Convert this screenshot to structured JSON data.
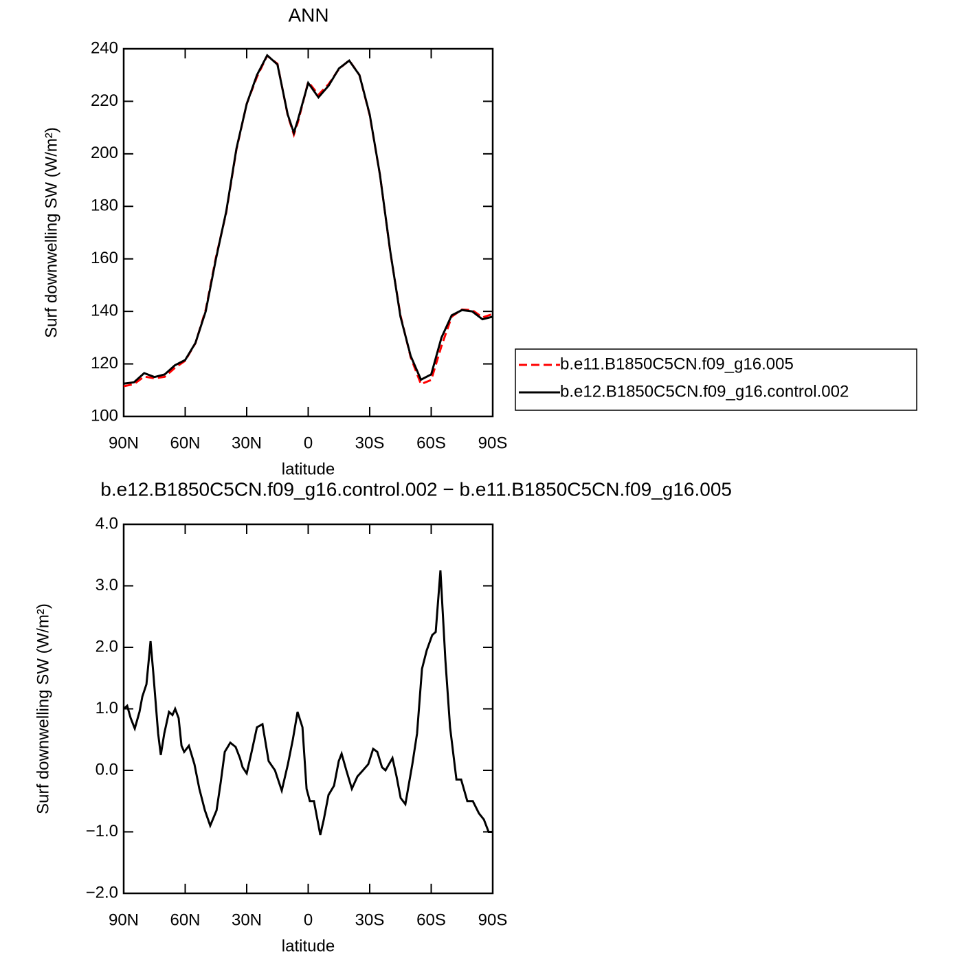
{
  "chart_data": [
    {
      "type": "line",
      "title": "ANN",
      "xlabel": "latitude",
      "ylabel": "Surf downwelling SW (W/m²)",
      "x": [
        90,
        85,
        80,
        75,
        70,
        65,
        60,
        55,
        50,
        45,
        40,
        35,
        30,
        25,
        20,
        15,
        10,
        7,
        5,
        0,
        -5,
        -10,
        -15,
        -20,
        -25,
        -30,
        -35,
        -40,
        -45,
        -50,
        -55,
        -60,
        -65,
        -70,
        -75,
        -80,
        -85,
        -90
      ],
      "xlim": [
        90,
        -90
      ],
      "xticks": [
        {
          "value": 90,
          "label": "90N"
        },
        {
          "value": 60,
          "label": "60N"
        },
        {
          "value": 30,
          "label": "30N"
        },
        0,
        {
          "value": -30,
          "label": "30S"
        },
        {
          "value": -60,
          "label": "60S"
        },
        {
          "value": -90,
          "label": "90S"
        }
      ],
      "ylim": [
        100,
        240
      ],
      "yticks": [
        100,
        120,
        140,
        160,
        180,
        200,
        220,
        240
      ],
      "legend": "right",
      "series": [
        {
          "name": "b.e11.B1850C5CN.f09_g16.005",
          "color": "#ff0000",
          "line_style": "dashed",
          "values": [
            111.5,
            112.3,
            115.2,
            114.5,
            115.1,
            118.5,
            121.2,
            127.9,
            140.6,
            160.6,
            177.6,
            201.7,
            219.0,
            229.3,
            237.4,
            234.3,
            214.7,
            207.3,
            212.1,
            227.4,
            222.5,
            226.6,
            232.3,
            235.6,
            230.0,
            214.7,
            192.0,
            162.8,
            138.5,
            122.5,
            112.3,
            113.9,
            126.8,
            138.0,
            140.7,
            140.5,
            137.7,
            139.0
          ]
        },
        {
          "name": "b.e12.B1850C5CN.f09_g16.control.002",
          "color": "#000000",
          "line_style": "solid",
          "values": [
            112.5,
            113,
            116.5,
            115,
            116,
            119.5,
            121.5,
            128,
            140,
            160,
            178,
            202,
            219,
            230,
            237.5,
            234,
            215,
            208,
            213,
            227,
            221.5,
            226,
            232.5,
            235.5,
            230,
            215,
            192,
            163,
            138,
            123,
            114,
            116,
            130,
            138.5,
            140.5,
            140,
            137,
            138
          ]
        }
      ]
    },
    {
      "type": "line",
      "title": "b.e12.B1850C5CN.f09_g16.control.002 − b.e11.B1850C5CN.f09_g16.005",
      "xlabel": "latitude",
      "ylabel": "Surf downwelling SW (W/m²)",
      "x": [
        90,
        88.3,
        86.6,
        84.6,
        82.3,
        80.9,
        78.9,
        76.9,
        75.6,
        73.2,
        71.9,
        70.2,
        67.9,
        66.2,
        64.9,
        63.2,
        61.8,
        60.5,
        58.2,
        55.5,
        53.1,
        50.4,
        47.8,
        44.7,
        42.7,
        40.7,
        38.0,
        35.4,
        33.3,
        32.0,
        30.0,
        27.6,
        25.0,
        22.3,
        19.3,
        16.2,
        12.9,
        9.9,
        7.5,
        5.2,
        2.8,
        0.8,
        -0.8,
        -2.8,
        -5.9,
        -7.6,
        -9.9,
        -12.6,
        -14.9,
        -16.3,
        -18.6,
        -21.3,
        -24.0,
        -26.7,
        -29.3,
        -31.7,
        -33.7,
        -36.0,
        -37.7,
        -41.1,
        -43.1,
        -45.1,
        -47.4,
        -50.8,
        -53.1,
        -55.5,
        -57.8,
        -60.5,
        -62.2,
        -64.5,
        -66.9,
        -69.2,
        -72.3,
        -74.6,
        -77.6,
        -80.3,
        -83.3,
        -85.7,
        -88.0,
        -90
      ],
      "xlim": [
        90,
        -90
      ],
      "xticks": [
        {
          "value": 90,
          "label": "90N"
        },
        {
          "value": 60,
          "label": "60N"
        },
        {
          "value": 30,
          "label": "30N"
        },
        0,
        {
          "value": -30,
          "label": "30S"
        },
        {
          "value": -60,
          "label": "60S"
        },
        {
          "value": -90,
          "label": "90S"
        }
      ],
      "ylim": [
        -2,
        4
      ],
      "yticks": [
        {
          "value": -2,
          "label": "−2.0"
        },
        {
          "value": -1,
          "label": "−1.0"
        },
        {
          "value": 0,
          "label": "0.0"
        },
        {
          "value": 1,
          "label": "1.0"
        },
        {
          "value": 2,
          "label": "2.0"
        },
        {
          "value": 3,
          "label": "3.0"
        },
        {
          "value": 4,
          "label": "4.0"
        }
      ],
      "series": [
        {
          "color": "#000000",
          "line_style": "solid",
          "values": [
            1.0,
            1.05,
            0.85,
            0.68,
            0.95,
            1.2,
            1.4,
            2.1,
            1.6,
            0.6,
            0.25,
            0.6,
            0.95,
            0.9,
            1.0,
            0.85,
            0.4,
            0.3,
            0.4,
            0.1,
            -0.3,
            -0.65,
            -0.9,
            -0.65,
            -0.2,
            0.3,
            0.45,
            0.38,
            0.2,
            0.05,
            -0.05,
            0.3,
            0.7,
            0.75,
            0.15,
            0.0,
            -0.33,
            0.1,
            0.5,
            0.95,
            0.7,
            -0.3,
            -0.5,
            -0.5,
            -1.05,
            -0.8,
            -0.4,
            -0.25,
            0.15,
            0.27,
            0.0,
            -0.3,
            -0.1,
            0.0,
            0.1,
            0.35,
            0.3,
            0.05,
            0.0,
            0.2,
            -0.1,
            -0.45,
            -0.55,
            0.1,
            0.6,
            1.65,
            1.95,
            2.2,
            2.25,
            3.25,
            1.8,
            0.7,
            -0.15,
            -0.15,
            -0.5,
            -0.5,
            -0.7,
            -0.8,
            -1.0,
            -1.0
          ]
        }
      ]
    }
  ]
}
